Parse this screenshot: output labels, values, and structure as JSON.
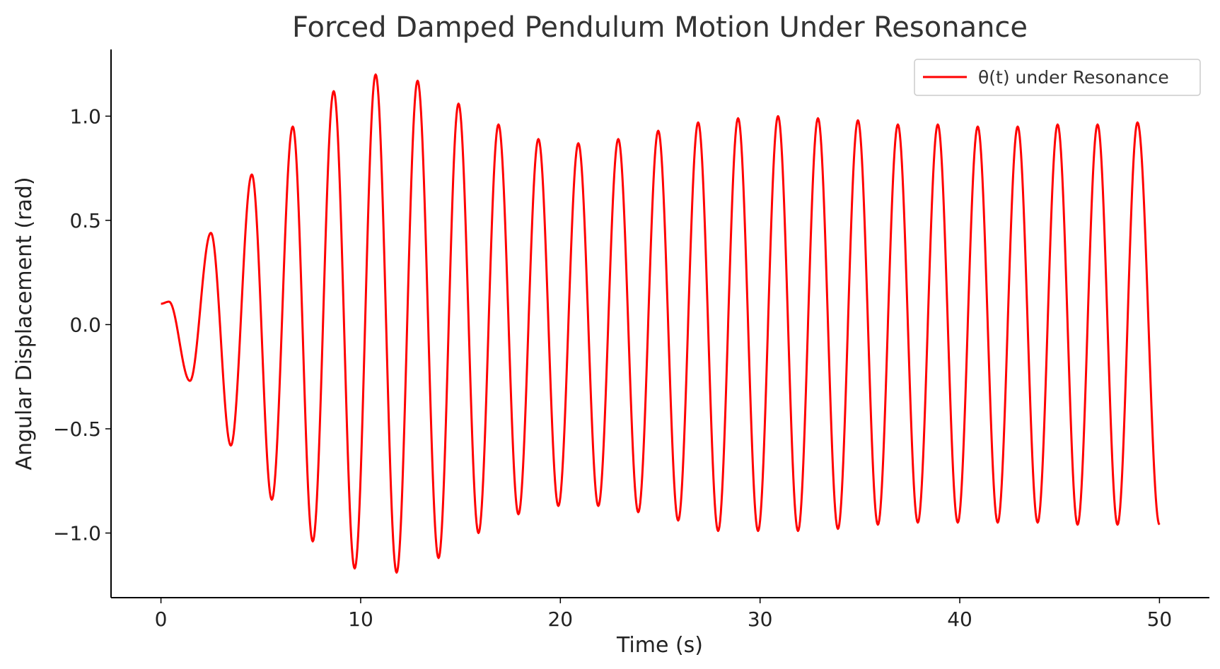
{
  "chart_data": {
    "type": "line",
    "title": "Forced Damped Pendulum Motion Under Resonance",
    "xlabel": "Time (s)",
    "ylabel": "Angular Displacement (rad)",
    "xlim": [
      -2.5,
      52.5
    ],
    "ylim": [
      -1.31,
      1.32
    ],
    "xticks": [
      0,
      10,
      20,
      30,
      40,
      50
    ],
    "xtick_labels": [
      "0",
      "10",
      "20",
      "30",
      "40",
      "50"
    ],
    "yticks": [
      -1.0,
      -0.5,
      0.0,
      0.5,
      1.0
    ],
    "ytick_labels": [
      "−1.0",
      "−0.5",
      "0.0",
      "0.5",
      "1.0"
    ],
    "grid": false,
    "legend_position": "top-right",
    "series": [
      {
        "name": "θ(t) under Resonance",
        "color": "#ff0000",
        "x": [
          0,
          0.4,
          1.45,
          2.5,
          3.5,
          4.55,
          5.55,
          6.6,
          7.6,
          8.65,
          9.7,
          10.75,
          11.8,
          12.85,
          13.9,
          14.9,
          15.9,
          16.9,
          17.9,
          18.9,
          19.9,
          20.9,
          21.9,
          22.9,
          23.9,
          24.9,
          25.9,
          26.9,
          27.9,
          28.9,
          29.9,
          30.9,
          31.9,
          32.9,
          33.9,
          34.9,
          35.9,
          36.9,
          37.9,
          38.9,
          39.9,
          40.9,
          41.9,
          42.9,
          43.9,
          44.9,
          45.9,
          46.9,
          47.9,
          48.9,
          50
        ],
        "y": [
          0.1,
          0.11,
          -0.27,
          0.44,
          -0.58,
          0.72,
          -0.84,
          0.95,
          -1.04,
          1.12,
          -1.17,
          1.2,
          -1.19,
          1.17,
          -1.12,
          1.06,
          -1.0,
          0.96,
          -0.91,
          0.89,
          -0.87,
          0.87,
          -0.87,
          0.89,
          -0.9,
          0.93,
          -0.94,
          0.97,
          -0.99,
          0.99,
          -0.99,
          1.0,
          -0.99,
          0.99,
          -0.98,
          0.98,
          -0.96,
          0.96,
          -0.95,
          0.96,
          -0.95,
          0.95,
          -0.95,
          0.95,
          -0.95,
          0.96,
          -0.96,
          0.96,
          -0.96,
          0.97,
          -0.96
        ]
      }
    ]
  }
}
